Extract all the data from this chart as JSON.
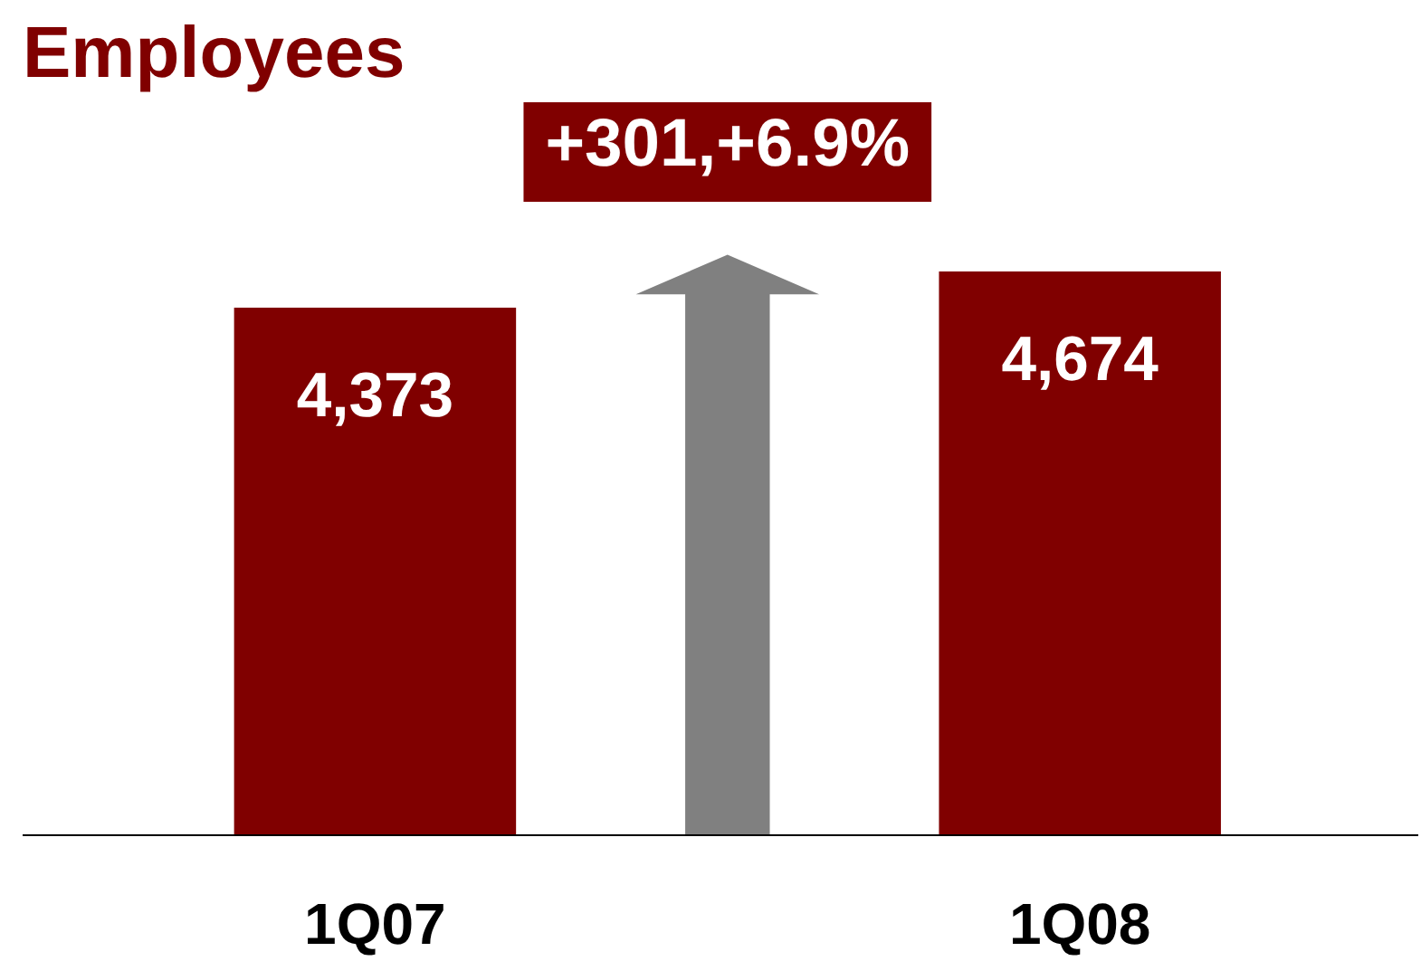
{
  "chart_data": {
    "type": "bar",
    "title": "Employees",
    "categories": [
      "1Q07",
      "1Q08"
    ],
    "values": [
      4373,
      4674
    ],
    "color": "#800000",
    "value_labels": [
      "4,373",
      "4,674"
    ],
    "tick_labels": "x",
    "grid": false,
    "annotations": [
      "+301,+6.9%"
    ]
  }
}
